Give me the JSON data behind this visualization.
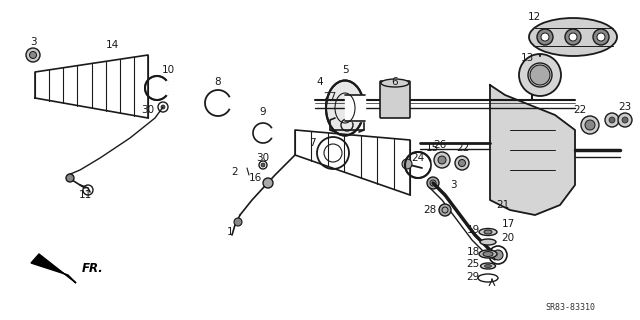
{
  "bg_color": "#ffffff",
  "line_color": "#1a1a1a",
  "diagram_code": "SR83-83310",
  "fr_label": "FR.",
  "figsize": [
    6.4,
    3.2
  ],
  "dpi": 100
}
